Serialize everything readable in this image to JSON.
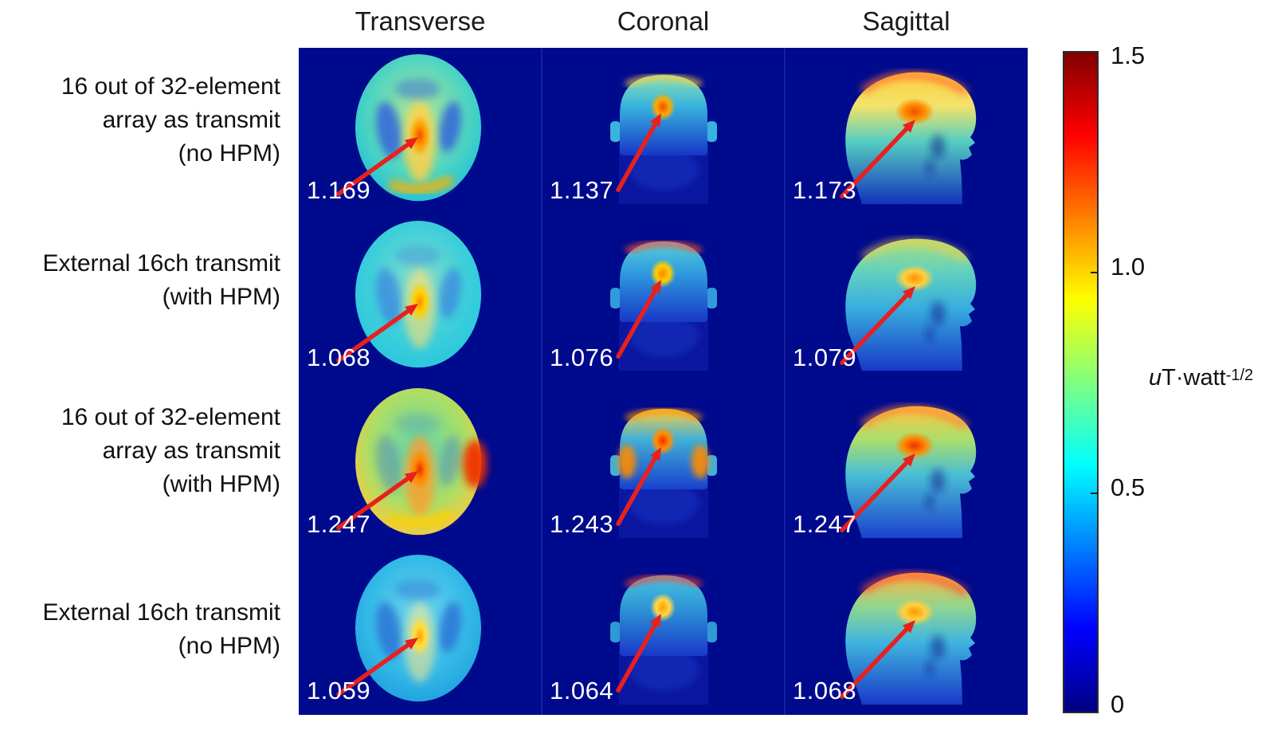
{
  "figure": {
    "column_headers": [
      "Transverse",
      "Coronal",
      "Sagittal"
    ],
    "rows": [
      {
        "label_lines": [
          "16 out of 32-element",
          "array as transmit",
          "(no HPM)"
        ],
        "values": [
          "1.169",
          "1.137",
          "1.173"
        ]
      },
      {
        "label_lines": [
          "External 16ch transmit",
          "(with HPM)"
        ],
        "values": [
          "1.068",
          "1.076",
          "1.079"
        ]
      },
      {
        "label_lines": [
          "16 out of 32-element",
          "array as transmit",
          "(with HPM)"
        ],
        "values": [
          "1.247",
          "1.243",
          "1.247"
        ]
      },
      {
        "label_lines": [
          "External 16ch transmit",
          "(no HPM)"
        ],
        "values": [
          "1.059",
          "1.064",
          "1.068"
        ]
      }
    ],
    "colorbar": {
      "ticks": [
        "1.5",
        "1.0",
        "0.5",
        "0"
      ],
      "unit": {
        "italic": "u",
        "base": "T·watt",
        "sup": "-1/2"
      }
    }
  },
  "chart_data": {
    "type": "heatmap",
    "title": "",
    "columns": [
      "Transverse",
      "Coronal",
      "Sagittal"
    ],
    "rows": [
      "16 out of 32-element array as transmit (no HPM)",
      "External 16ch transmit (with HPM)",
      "16 out of 32-element array as transmit (with HPM)",
      "External 16ch transmit (no HPM)"
    ],
    "annotated_peak_values": [
      [
        1.169,
        1.137,
        1.173
      ],
      [
        1.068,
        1.076,
        1.079
      ],
      [
        1.247,
        1.243,
        1.247
      ],
      [
        1.059,
        1.064,
        1.068
      ]
    ],
    "colorbar": {
      "min": 0,
      "max": 1.5,
      "ticks": [
        0,
        0.5,
        1.0,
        1.5
      ],
      "unit": "uT·watt^-1/2",
      "colormap": "jet"
    },
    "annotation_style": "red arrow pointing to peak value location in each map",
    "legend_position": "right colorbar"
  },
  "colors": {
    "panel_background": "#000a8c",
    "arrow_red": "#e8201e",
    "value_text": "#ffffff",
    "label_text": "#111111"
  }
}
